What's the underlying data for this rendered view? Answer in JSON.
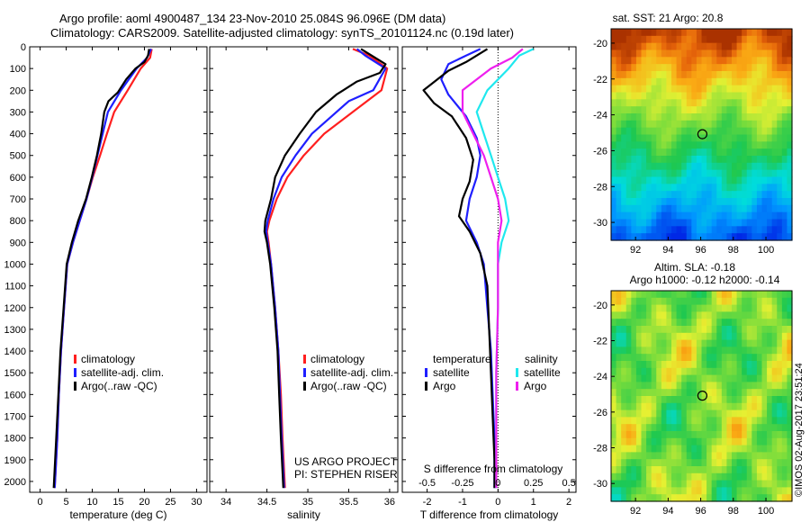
{
  "header": {
    "title_line1": "Argo profile: aoml 4900487_134 23-Nov-2010 25.084S 96.096E (DM data)",
    "title_line2": "Climatology: CARS2009. Satellite-adjusted climatology: synTS_20101124.nc (0.19d later)"
  },
  "footer": {
    "project_line1": "US ARGO PROJECT",
    "project_line2": "PI: STEPHEN RISER",
    "stamp": "©IMOS 02-Aug-2017 23:51:24"
  },
  "colors": {
    "climatology": "#ff1f1f",
    "satellite": "#1f1fff",
    "argo": "#000000",
    "sal_satellite": "#1fe8ee",
    "sal_argo": "#ee1fee"
  },
  "chart_data": [
    {
      "type": "line",
      "xlabel": "temperature (deg C)",
      "ylabel": "",
      "xlim": [
        -2,
        32
      ],
      "ylim": [
        2050,
        0
      ],
      "x_ticks": [
        0,
        5,
        10,
        15,
        20,
        25,
        30
      ],
      "y_ticks": [
        0,
        100,
        200,
        300,
        400,
        500,
        600,
        700,
        800,
        900,
        1000,
        1100,
        1200,
        1300,
        1400,
        1500,
        1600,
        1700,
        1800,
        1900,
        2000
      ],
      "legend": {
        "position": "lower-center",
        "entries": [
          "climatology",
          "satellite-adj. clim.",
          "Argo(..raw -QC)"
        ]
      },
      "series": [
        {
          "name": "climatology",
          "color": "#ff1f1f",
          "points": [
            [
              21.4,
              10
            ],
            [
              21.1,
              50
            ],
            [
              19.3,
              100
            ],
            [
              16.8,
              200
            ],
            [
              14.2,
              300
            ],
            [
              12.8,
              400
            ],
            [
              11.5,
              500
            ],
            [
              10.1,
              600
            ],
            [
              8.9,
              700
            ],
            [
              7.6,
              800
            ],
            [
              6.3,
              900
            ],
            [
              5.2,
              1000
            ],
            [
              4.6,
              1200
            ],
            [
              4.0,
              1400
            ],
            [
              3.6,
              1600
            ],
            [
              3.3,
              1800
            ],
            [
              2.8,
              2030
            ]
          ]
        },
        {
          "name": "satellite-adj. clim.",
          "color": "#1f1fff",
          "points": [
            [
              21.3,
              10
            ],
            [
              20.5,
              50
            ],
            [
              18.5,
              100
            ],
            [
              15.5,
              200
            ],
            [
              13.0,
              300
            ],
            [
              12.0,
              400
            ],
            [
              11.0,
              500
            ],
            [
              10.0,
              600
            ],
            [
              8.9,
              700
            ],
            [
              7.6,
              800
            ],
            [
              6.3,
              900
            ],
            [
              5.2,
              1000
            ],
            [
              4.6,
              1200
            ],
            [
              4.0,
              1400
            ],
            [
              3.6,
              1600
            ],
            [
              3.3,
              1800
            ],
            [
              2.8,
              2030
            ]
          ]
        },
        {
          "name": "Argo(..raw -QC)",
          "color": "#000000",
          "points": [
            [
              20.9,
              10
            ],
            [
              20.7,
              40
            ],
            [
              20.0,
              70
            ],
            [
              18.3,
              100
            ],
            [
              16.5,
              150
            ],
            [
              14.9,
              210
            ],
            [
              13.1,
              250
            ],
            [
              12.3,
              300
            ],
            [
              11.7,
              400
            ],
            [
              10.9,
              500
            ],
            [
              9.9,
              600
            ],
            [
              8.8,
              700
            ],
            [
              7.3,
              800
            ],
            [
              6.1,
              900
            ],
            [
              5.1,
              1000
            ],
            [
              4.5,
              1200
            ],
            [
              3.9,
              1400
            ],
            [
              3.5,
              1600
            ],
            [
              3.1,
              1800
            ],
            [
              2.6,
              2030
            ]
          ]
        }
      ]
    },
    {
      "type": "line",
      "xlabel": "salinity",
      "xlim": [
        33.8,
        36.1
      ],
      "ylim": [
        2050,
        0
      ],
      "x_ticks": [
        34,
        34.5,
        35,
        35.5,
        36
      ],
      "legend": {
        "position": "lower-center",
        "entries": [
          "climatology",
          "satellite-adj. clim.",
          "Argo(..raw -QC)"
        ]
      },
      "series": [
        {
          "name": "climatology",
          "color": "#ff1f1f",
          "points": [
            [
              35.55,
              10
            ],
            [
              35.75,
              40
            ],
            [
              35.97,
              100
            ],
            [
              35.9,
              200
            ],
            [
              35.55,
              300
            ],
            [
              35.2,
              400
            ],
            [
              34.95,
              500
            ],
            [
              34.75,
              600
            ],
            [
              34.62,
              700
            ],
            [
              34.53,
              800
            ],
            [
              34.5,
              850
            ],
            [
              34.52,
              900
            ],
            [
              34.55,
              1000
            ],
            [
              34.6,
              1200
            ],
            [
              34.64,
              1400
            ],
            [
              34.67,
              1600
            ],
            [
              34.69,
              1800
            ],
            [
              34.72,
              2030
            ]
          ]
        },
        {
          "name": "satellite-adj. clim.",
          "color": "#1f1fff",
          "points": [
            [
              35.6,
              10
            ],
            [
              35.7,
              40
            ],
            [
              35.95,
              100
            ],
            [
              35.8,
              200
            ],
            [
              35.5,
              250
            ],
            [
              35.05,
              400
            ],
            [
              34.85,
              500
            ],
            [
              34.68,
              600
            ],
            [
              34.58,
              700
            ],
            [
              34.51,
              800
            ],
            [
              34.49,
              850
            ],
            [
              34.51,
              900
            ],
            [
              34.55,
              1000
            ],
            [
              34.6,
              1200
            ],
            [
              34.64,
              1400
            ],
            [
              34.66,
              1600
            ],
            [
              34.68,
              1800
            ],
            [
              34.71,
              2030
            ]
          ]
        },
        {
          "name": "Argo(..raw -QC)",
          "color": "#000000",
          "points": [
            [
              35.65,
              10
            ],
            [
              35.78,
              40
            ],
            [
              35.95,
              80
            ],
            [
              35.88,
              120
            ],
            [
              35.6,
              160
            ],
            [
              35.35,
              220
            ],
            [
              35.1,
              300
            ],
            [
              34.9,
              400
            ],
            [
              34.72,
              500
            ],
            [
              34.6,
              600
            ],
            [
              34.55,
              700
            ],
            [
              34.48,
              800
            ],
            [
              34.47,
              850
            ],
            [
              34.5,
              900
            ],
            [
              34.54,
              1000
            ],
            [
              34.59,
              1200
            ],
            [
              34.63,
              1400
            ],
            [
              34.65,
              1600
            ],
            [
              34.67,
              1800
            ],
            [
              34.7,
              2030
            ]
          ]
        }
      ]
    },
    {
      "type": "line",
      "xlabel": "T difference from climatology",
      "xlabel_top": "S difference from climatology",
      "xlim": [
        -2.7,
        2.2
      ],
      "ylim": [
        2050,
        0
      ],
      "x_ticks": [
        -2,
        -1,
        0,
        1,
        2
      ],
      "x_ticks_top": [
        "-0.5",
        "-0.25",
        "0",
        "0.25",
        "0.5"
      ],
      "x_ticks_top_pos": [
        -2,
        -1,
        0,
        1,
        2
      ],
      "zero_line": true,
      "legend": {
        "position": "middle",
        "group_left": "temperature",
        "group_right": "salinity"
      },
      "series": [
        {
          "name": "satellite",
          "color": "#1f1fff",
          "group": "temperature",
          "points": [
            [
              -0.5,
              10
            ],
            [
              -0.9,
              40
            ],
            [
              -1.4,
              80
            ],
            [
              -1.6,
              150
            ],
            [
              -1.4,
              220
            ],
            [
              -0.9,
              320
            ],
            [
              -0.6,
              420
            ],
            [
              -0.5,
              500
            ],
            [
              -0.6,
              600
            ],
            [
              -0.8,
              700
            ],
            [
              -0.9,
              800
            ],
            [
              -0.6,
              900
            ],
            [
              -0.4,
              1000
            ],
            [
              -0.3,
              1200
            ],
            [
              -0.2,
              1400
            ],
            [
              -0.15,
              1600
            ],
            [
              -0.1,
              1800
            ],
            [
              -0.1,
              2030
            ]
          ]
        },
        {
          "name": "Argo",
          "color": "#000000",
          "group": "temperature",
          "points": [
            [
              -0.3,
              10
            ],
            [
              -0.6,
              40
            ],
            [
              -0.9,
              70
            ],
            [
              -1.4,
              110
            ],
            [
              -2.1,
              200
            ],
            [
              -1.8,
              260
            ],
            [
              -1.3,
              320
            ],
            [
              -0.9,
              420
            ],
            [
              -0.7,
              520
            ],
            [
              -0.8,
              620
            ],
            [
              -1.0,
              700
            ],
            [
              -1.1,
              780
            ],
            [
              -0.8,
              850
            ],
            [
              -0.5,
              950
            ],
            [
              -0.3,
              1100
            ],
            [
              -0.25,
              1300
            ],
            [
              -0.2,
              1500
            ],
            [
              -0.15,
              1700
            ],
            [
              -0.1,
              1900
            ],
            [
              -0.1,
              2030
            ]
          ]
        },
        {
          "name": "satellite",
          "color": "#1fe8ee",
          "group": "salinity",
          "points": [
            [
              1.0,
              10
            ],
            [
              0.6,
              40
            ],
            [
              0.3,
              100
            ],
            [
              -0.3,
              200
            ],
            [
              -0.6,
              300
            ],
            [
              -0.4,
              400
            ],
            [
              -0.2,
              500
            ],
            [
              0.0,
              600
            ],
            [
              0.2,
              700
            ],
            [
              0.3,
              800
            ],
            [
              0.1,
              900
            ],
            [
              0.0,
              1000
            ],
            [
              0.0,
              1200
            ],
            [
              -0.05,
              1500
            ],
            [
              -0.05,
              2030
            ]
          ]
        },
        {
          "name": "Argo",
          "color": "#ee1fee",
          "group": "salinity",
          "points": [
            [
              0.7,
              10
            ],
            [
              0.4,
              50
            ],
            [
              -0.2,
              100
            ],
            [
              -1.0,
              200
            ],
            [
              -1.0,
              300
            ],
            [
              -0.7,
              400
            ],
            [
              -0.4,
              500
            ],
            [
              -0.2,
              600
            ],
            [
              0.0,
              700
            ],
            [
              0.1,
              800
            ],
            [
              0.0,
              900
            ],
            [
              0.0,
              1000
            ],
            [
              0.0,
              1200
            ],
            [
              -0.05,
              1500
            ],
            [
              -0.05,
              2030
            ]
          ]
        }
      ]
    },
    {
      "type": "heatmap",
      "title": "sat. SST: 21  Argo: 20.8",
      "xlim": [
        90.5,
        101.6
      ],
      "ylim": [
        -31,
        -19.2
      ],
      "x_ticks": [
        92,
        94,
        96,
        98,
        100
      ],
      "y_ticks": [
        -20,
        -22,
        -24,
        -26,
        -28,
        -30
      ],
      "marker": {
        "lon": 96.1,
        "lat": -25.08
      }
    },
    {
      "type": "heatmap",
      "title_line1": "Altim. SLA: -0.18",
      "title_line2": "Argo h1000: -0.12  h2000: -0.14",
      "xlim": [
        90.5,
        101.6
      ],
      "ylim": [
        -31,
        -19.2
      ],
      "x_ticks": [
        92,
        94,
        96,
        98,
        100
      ],
      "y_ticks": [
        -20,
        -22,
        -24,
        -26,
        -28,
        -30
      ],
      "marker": {
        "lon": 96.1,
        "lat": -25.08
      }
    }
  ]
}
